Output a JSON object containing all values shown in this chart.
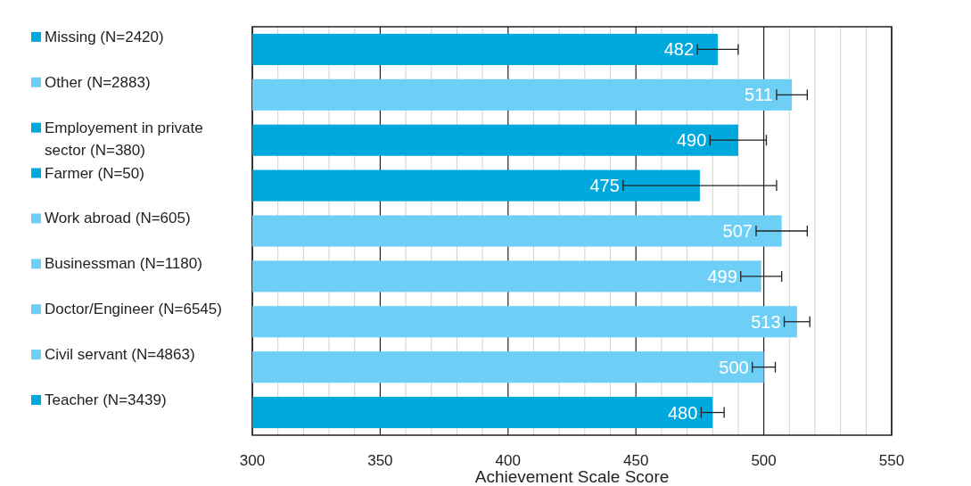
{
  "chart_data": {
    "type": "bar",
    "orientation": "horizontal",
    "xlabel": "Achievement Scale Score",
    "categories": [
      "Missing (N=2420)",
      "Other (N=2883)",
      "Employement in private sector (N=380)",
      "Farmer (N=50)",
      "Work abroad (N=605)",
      "Businessman (N=1180)",
      "Doctor/Engineer (N=6545)",
      "Civil servant (N=4863)",
      "Teacher (N=3439)"
    ],
    "values": [
      482,
      511,
      490,
      475,
      507,
      499,
      513,
      500,
      480
    ],
    "errors": [
      8,
      6,
      11,
      30,
      10,
      8,
      5,
      4.5,
      4.5
    ],
    "colors": [
      "#00a9dd",
      "#6dcff6",
      "#00a9dd",
      "#00a9dd",
      "#6dcff6",
      "#6dcff6",
      "#6dcff6",
      "#6dcff6",
      "#00a9dd"
    ],
    "data_labels": true,
    "grid": "x",
    "xlim": [
      300,
      550
    ],
    "xticks": [
      300,
      {
        "value": 310,
        "label": null
      },
      {
        "value": 320,
        "label": null
      },
      {
        "value": 330,
        "label": null
      },
      {
        "value": 340,
        "label": null
      },
      350,
      {
        "value": 360,
        "label": null
      },
      {
        "value": 370,
        "label": null
      },
      {
        "value": 380,
        "label": null
      },
      {
        "value": 390,
        "label": null
      },
      400,
      {
        "value": 410,
        "label": null
      },
      {
        "value": 420,
        "label": null
      },
      {
        "value": 430,
        "label": null
      },
      {
        "value": 440,
        "label": null
      },
      450,
      {
        "value": 460,
        "label": null
      },
      {
        "value": 470,
        "label": null
      },
      {
        "value": 480,
        "label": null
      },
      {
        "value": 490,
        "label": null
      },
      500,
      {
        "value": 510,
        "label": null
      },
      {
        "value": 520,
        "label": null
      },
      {
        "value": 530,
        "label": null
      },
      {
        "value": 540,
        "label": null
      },
      550
    ]
  }
}
